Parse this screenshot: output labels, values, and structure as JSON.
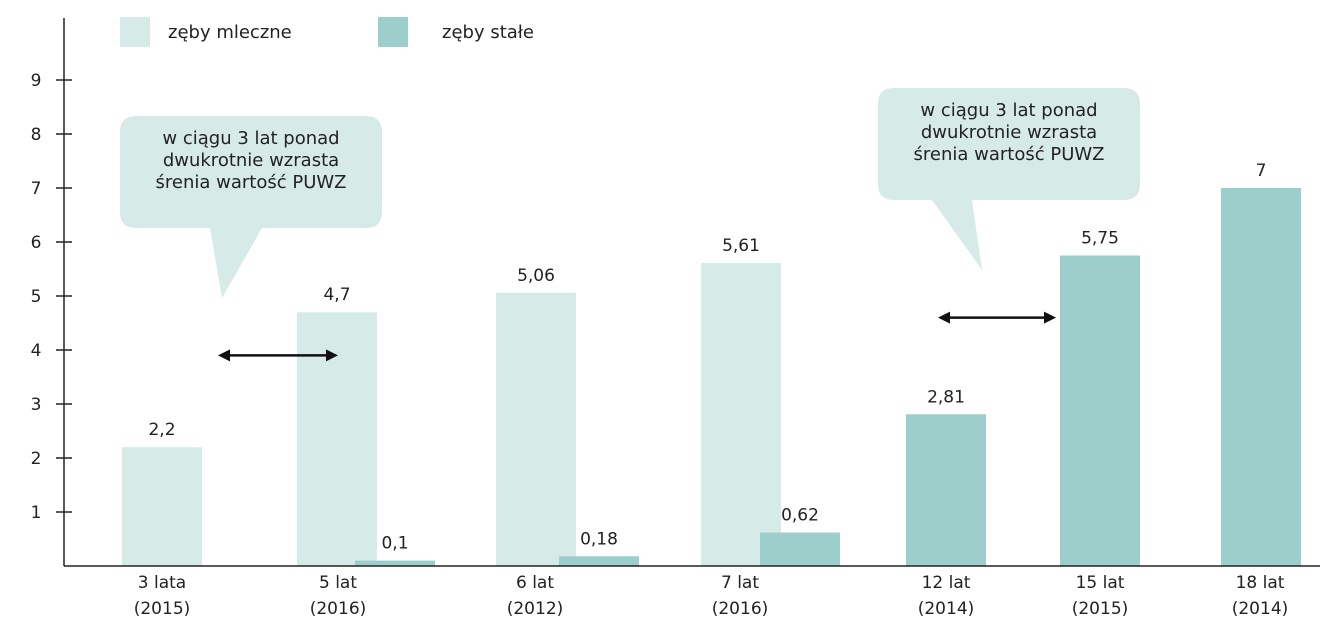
{
  "chart_data": {
    "type": "bar",
    "categories": [
      [
        "3 lata",
        "(2015)"
      ],
      [
        "5 lat",
        "(2016)"
      ],
      [
        "6 lat",
        "(2012)"
      ],
      [
        "7 lat",
        "(2016)"
      ],
      [
        "12 lat",
        "(2014)"
      ],
      [
        "15 lat",
        "(2015)"
      ],
      [
        "18 lat",
        "(2014)"
      ]
    ],
    "series": [
      {
        "name": "zęby mleczne",
        "color": "#d6ebe8",
        "values": [
          2.2,
          4.7,
          5.06,
          5.61,
          null,
          null,
          null
        ],
        "labels": [
          "2,2",
          "4,7",
          "5,06",
          "5,61",
          "",
          "",
          ""
        ]
      },
      {
        "name": "zęby stałe",
        "color": "#9ccfcc",
        "values": [
          null,
          0.1,
          0.18,
          0.62,
          2.81,
          5.75,
          7
        ],
        "labels": [
          "",
          "0,1",
          "0,18",
          "0,62",
          "2,81",
          "5,75",
          "7"
        ]
      }
    ],
    "ylim": [
      0,
      10
    ],
    "yticks": [
      1,
      2,
      3,
      4,
      5,
      6,
      7,
      8,
      9
    ],
    "ytick_labels": [
      "1",
      "2",
      "3",
      "4",
      "5",
      "6",
      "7",
      "8",
      "9"
    ],
    "grid": false,
    "legend_position": "top-left",
    "annotations": [
      {
        "lines": [
          "w ciągu 3 lat ponad",
          "dwukrotnie wzrasta",
          "śrenia wartość PUWZ"
        ],
        "arrow_between": [
          "3 lata",
          "5 lat"
        ],
        "arrow_y": 3.9
      },
      {
        "lines": [
          "w ciągu 3 lat ponad",
          "dwukrotnie wzrasta",
          "śrenia wartość PUWZ"
        ],
        "arrow_between": [
          "12 lat",
          "15 lat"
        ],
        "arrow_y": 4.6
      }
    ],
    "bubble_color": "#d6ebe8"
  }
}
